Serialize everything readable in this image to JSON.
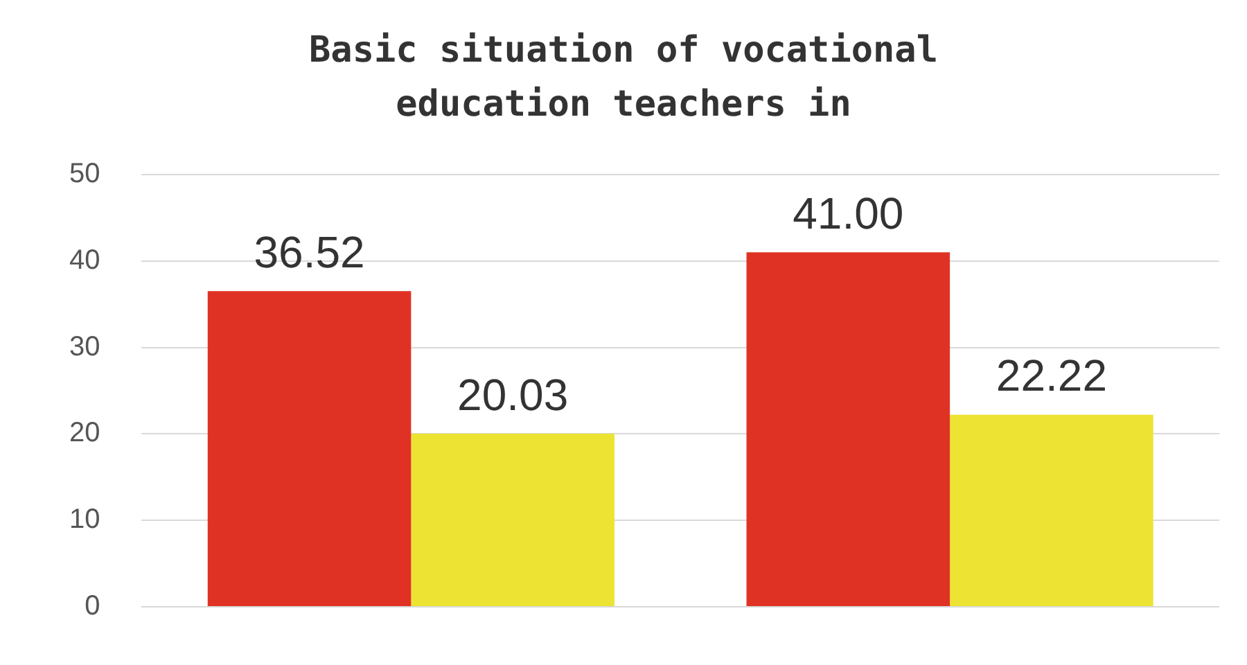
{
  "chart_data": {
    "type": "bar",
    "title": "Basic situation of vocational education teachers in",
    "categories": [
      null,
      null
    ],
    "series": [
      {
        "color": "#e03224",
        "values": [
          36.52,
          41.0
        ],
        "value_labels": [
          "36.52",
          "41.00"
        ]
      },
      {
        "color": "#ece332",
        "values": [
          20.03,
          22.22
        ],
        "value_labels": [
          "20.03",
          "22.22"
        ]
      }
    ],
    "ylim": [
      0,
      50
    ],
    "yticks": [
      0,
      10,
      20,
      30,
      40,
      50
    ],
    "grid": "y",
    "legend": false
  }
}
